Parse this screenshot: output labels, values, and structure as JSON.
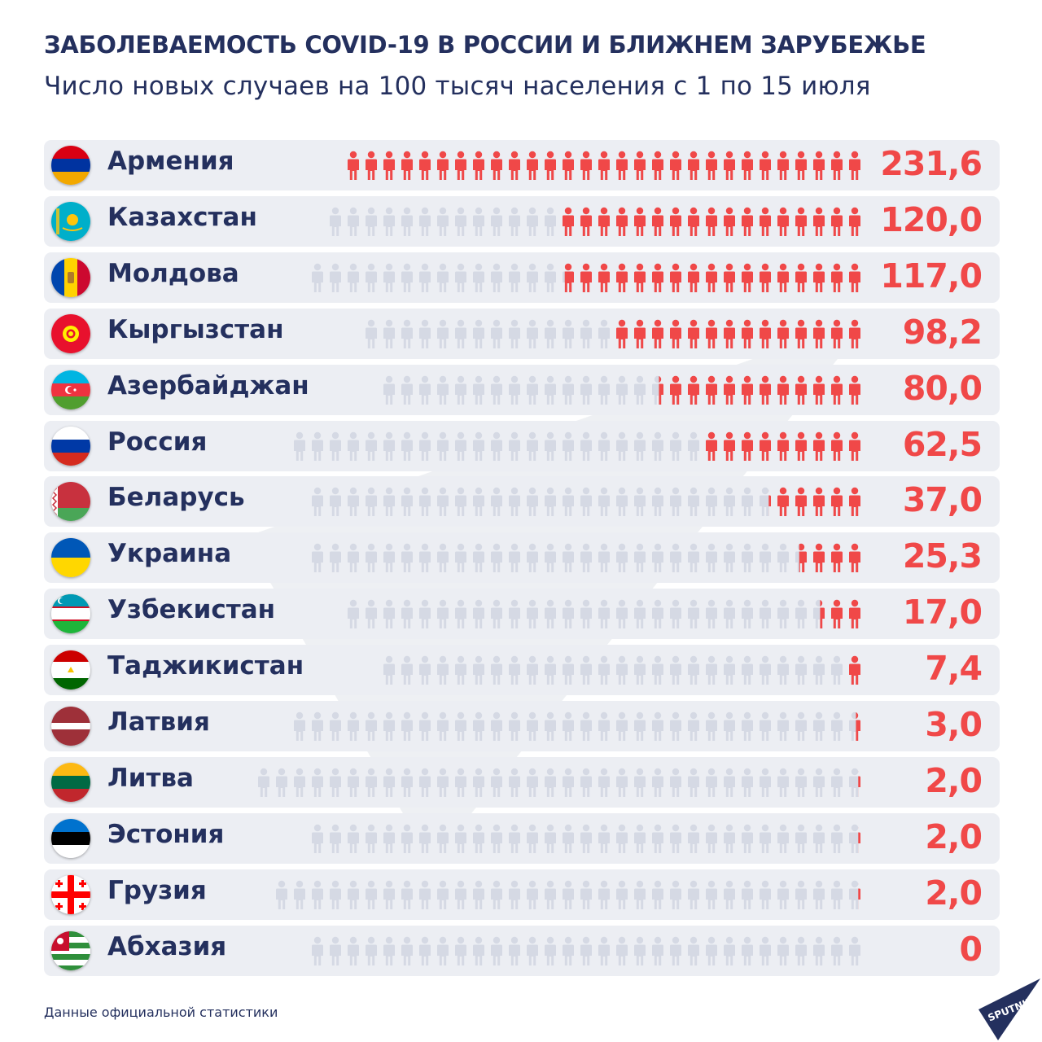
{
  "title": "ЗАБОЛЕВАЕМОСТЬ COVID-19 В РОССИИ И БЛИЖНЕМ ЗАРУБЕЖЬЕ",
  "subtitle": "Число новых случаев на 100 тысяч населения с 1 по 15 июля",
  "source": "Данные официальной статистики",
  "brand": "SPUTNIK",
  "colors": {
    "accent": "#f04848",
    "person_inactive": "#d5d9e4",
    "row_bg": "#eceef3",
    "text": "#24305e"
  },
  "chart_data": {
    "type": "pictogram-bar",
    "title": "ЗАБОЛЕВАЕМОСТЬ COVID-19 В РОССИИ И БЛИЖНЕМ ЗАРУБЕЖЬЕ",
    "subtitle": "Число новых случаев на 100 тысяч населения с 1 по 15 июля",
    "xlim": [
      0,
      231.6
    ],
    "categories": [
      "Армения",
      "Казахстан",
      "Молдова",
      "Кыргызстан",
      "Азербайджан",
      "Россия",
      "Беларусь",
      "Украина",
      "Узбекистан",
      "Таджикистан",
      "Латвия",
      "Литва",
      "Эстония",
      "Грузия",
      "Абхазия"
    ],
    "values": [
      231.6,
      120.0,
      117.0,
      98.2,
      80.0,
      62.5,
      37.0,
      25.3,
      17.0,
      7.4,
      3.0,
      2.0,
      2.0,
      2.0,
      0
    ],
    "labels": [
      "231,6",
      "120,0",
      "117,0",
      "98,2",
      "80,0",
      "62,5",
      "37,0",
      "25,3",
      "17,0",
      "7,4",
      "3,0",
      "2,0",
      "2,0",
      "2,0",
      "0"
    ],
    "flags": [
      "armenia-flag",
      "kazakhstan-flag",
      "moldova-flag",
      "kyrgyzstan-flag",
      "azerbaijan-flag",
      "russia-flag",
      "belarus-flag",
      "ukraine-flag",
      "uzbekistan-flag",
      "tajikistan-flag",
      "latvia-flag",
      "lithuania-flag",
      "estonia-flag",
      "georgia-flag",
      "abkhazia-flag"
    ],
    "legend": "none",
    "grid": false
  }
}
